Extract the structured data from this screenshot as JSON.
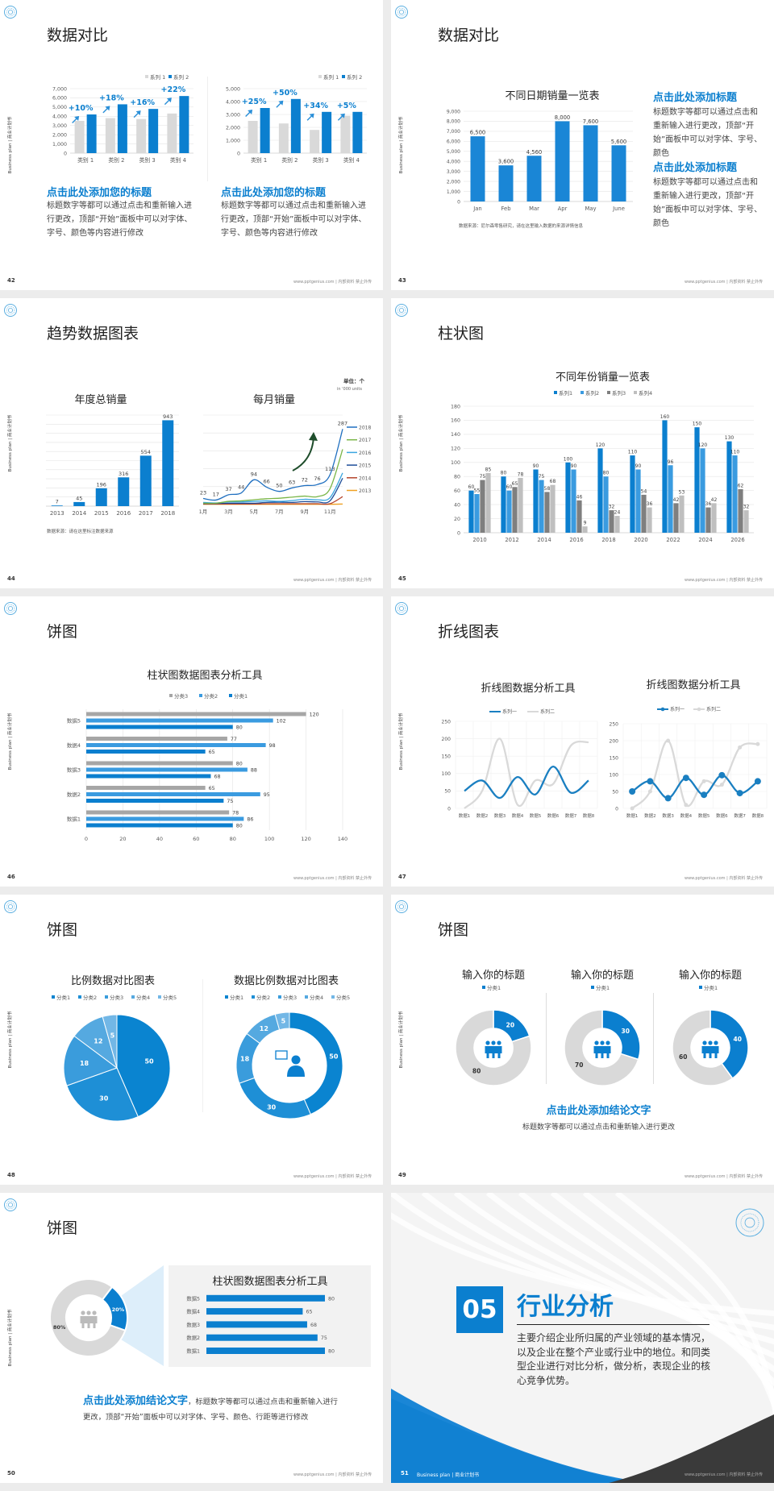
{
  "common": {
    "side_label": "Business plan | 商业计划书",
    "footer": "www.pptgenius.com | 内部资料 禁止外传",
    "accent": "#0b7fcf"
  },
  "slides": {
    "s42": {
      "page": "42",
      "title": "数据对比",
      "left_heading": "点击此处添加您的标题",
      "left_body": "标题数字等都可以通过点击和重新输入进行更改，顶部“开始”面板中可以对字体、字号、颜色等内容进行修改",
      "right_heading": "点击此处添加您的标题",
      "right_body": "标题数字等都可以通过点击和重新输入进行更改，顶部“开始”面板中可以对字体、字号、颜色等内容进行修改"
    },
    "s43": {
      "page": "43",
      "title": "数据对比",
      "source": "数据来源：尼尔森零售研究，请在这里输入数据的来源详情信息",
      "heading1": "点击此处添加标题",
      "body1": "标题数字等都可以通过点击和重新输入进行更改，顶部“开始”面板中可以对字体、字号、颜色",
      "heading2": "点击此处添加标题",
      "body2": "标题数字等都可以通过点击和重新输入进行更改，顶部“开始”面板中可以对字体、字号、颜色"
    },
    "s44": {
      "page": "44",
      "title": "趋势数据图表",
      "source": "数据来源：请在这里标注数据来源",
      "unit": "单位：个",
      "unit_sub": "in '000 units"
    },
    "s45": {
      "page": "45",
      "title": "柱状图"
    },
    "s46": {
      "page": "46",
      "title": "饼图"
    },
    "s47": {
      "page": "47",
      "title": "折线图表"
    },
    "s48": {
      "page": "48",
      "title": "饼图"
    },
    "s49": {
      "page": "49",
      "title": "饼图",
      "conclusion_heading": "点击此处添加结论文字",
      "conclusion_body": "标题数字等都可以通过点击和重新输入进行更改"
    },
    "s50": {
      "page": "50",
      "title": "饼图",
      "conclusion_heading": "点击此处添加结论文字",
      "conclusion_body": "，标题数字等都可以通过点击和重新输入进行更改，顶部“开始”面板中可以对字体、字号、颜色、行距等进行修改"
    },
    "s51": {
      "page": "51",
      "number": "05",
      "title": "行业分析",
      "body": "主要介绍企业所归属的产业领域的基本情况，以及企业在整个产业或行业中的地位。和同类型企业进行对比分析，做分析，表现企业的核心竞争优势。",
      "footer_left": "Business plan | 商业计划书"
    }
  },
  "chart_data": [
    {
      "type": "bar",
      "categories": [
        "类别 1",
        "类别 2",
        "类别 3",
        "类别 4"
      ],
      "ylim": [
        0,
        7000
      ],
      "ytick_labels": [
        "0",
        "1,000",
        "2,000",
        "3,000",
        "4,000",
        "5,000",
        "6,000",
        "7,000"
      ],
      "legend": "top-right",
      "series": [
        {
          "name": "系列 1",
          "color": "#d9d9d9",
          "values": [
            3500,
            3800,
            3700,
            4300
          ]
        },
        {
          "name": "系列 2",
          "color": "#0b7fcf",
          "values": [
            4200,
            5300,
            4800,
            6200
          ]
        }
      ],
      "annotations": [
        "+10%",
        "+18%",
        "+16%",
        "+22%"
      ]
    },
    {
      "type": "bar",
      "categories": [
        "类别 1",
        "类别 2",
        "类别 3",
        "类别 4"
      ],
      "ylim": [
        0,
        5000
      ],
      "ytick_labels": [
        "0",
        "1,000",
        "2,000",
        "3,000",
        "4,000",
        "5,000"
      ],
      "legend": "top-right",
      "series": [
        {
          "name": "系列 1",
          "color": "#d9d9d9",
          "values": [
            2500,
            2300,
            1800,
            2900
          ]
        },
        {
          "name": "系列 2",
          "color": "#0b7fcf",
          "values": [
            3500,
            4200,
            3200,
            3200
          ]
        }
      ],
      "annotations": [
        "+25%",
        "+50%",
        "+34%",
        "+5%"
      ]
    },
    {
      "type": "bar",
      "title": "不同日期销量一览表",
      "categories": [
        "Jan",
        "Feb",
        "Mar",
        "Apr",
        "May",
        "June"
      ],
      "ylim": [
        0,
        9000
      ],
      "ytick_labels": [
        "0",
        "1,000",
        "2,000",
        "3,000",
        "4,000",
        "5,000",
        "6,000",
        "7,000",
        "8,000",
        "9,000"
      ],
      "series": [
        {
          "color": "#1a86d6",
          "values": [
            6500,
            3600,
            4560,
            8000,
            7600,
            5600
          ]
        }
      ],
      "data_labels": [
        [
          "6,500",
          "3,600",
          "4,560",
          "8,000",
          "7,600",
          "5,600"
        ]
      ]
    },
    {
      "type": "bar",
      "title": "年度总销量",
      "categories": [
        "2013",
        "2014",
        "2015",
        "2016",
        "2017",
        "2018"
      ],
      "ylim": [
        0,
        1000
      ],
      "grid": true,
      "series": [
        {
          "color": "#0b7fcf",
          "values": [
            7,
            45,
            196,
            316,
            554,
            943
          ]
        }
      ]
    },
    {
      "type": "line",
      "title": "每月销量",
      "x": [
        1,
        2,
        3,
        4,
        5,
        6,
        7,
        8,
        9,
        10,
        11,
        12
      ],
      "xtick_labels": [
        "1月",
        "3月",
        "5月",
        "7月",
        "9月",
        "11月"
      ],
      "ylim": [
        0,
        340
      ],
      "legend": "right",
      "series": [
        {
          "name": "2018",
          "color": "#1f6fc0",
          "values": [
            23,
            17,
            37,
            44,
            94,
            66,
            50,
            63,
            72,
            76,
            113,
            287
          ],
          "labels": true
        },
        {
          "name": "2017",
          "color": "#7ab648",
          "values": [
            5,
            5,
            12,
            14,
            18,
            22,
            24,
            28,
            32,
            30,
            60,
            210
          ]
        },
        {
          "name": "2016",
          "color": "#3aa6e0",
          "values": [
            8,
            6,
            10,
            10,
            12,
            14,
            12,
            15,
            20,
            18,
            26,
            120
          ]
        },
        {
          "name": "2015",
          "color": "#1f4e99",
          "values": [
            4,
            4,
            5,
            5,
            5,
            8,
            9,
            8,
            11,
            10,
            14,
            100
          ]
        },
        {
          "name": "2014",
          "color": "#b5442c",
          "values": [
            2,
            2,
            2,
            2,
            2,
            3,
            3,
            3,
            3,
            3,
            3,
            30
          ]
        },
        {
          "name": "2013",
          "color": "#f0a020",
          "values": [
            1,
            1,
            1,
            1,
            1,
            1,
            1,
            1,
            1,
            1,
            1,
            2
          ]
        }
      ]
    },
    {
      "type": "bar",
      "title": "不同年份销量一览表",
      "categories": [
        "2010",
        "2012",
        "2014",
        "2016",
        "2018",
        "2020",
        "2022",
        "2024",
        "2026"
      ],
      "ylim": [
        0,
        180
      ],
      "ytick_labels": [
        "0",
        "20",
        "40",
        "60",
        "80",
        "100",
        "120",
        "140",
        "160",
        "180"
      ],
      "legend": "top",
      "series": [
        {
          "name": "系列1",
          "color": "#0b7fcf",
          "values": [
            60,
            80,
            90,
            100,
            120,
            110,
            160,
            150,
            130
          ]
        },
        {
          "name": "系列2",
          "color": "#3a9be0",
          "values": [
            55,
            60,
            75,
            90,
            80,
            90,
            96,
            120,
            110
          ]
        },
        {
          "name": "系列3",
          "color": "#7f7f7f",
          "values": [
            75,
            65,
            58,
            46,
            32,
            54,
            42,
            36,
            62
          ]
        },
        {
          "name": "系列4",
          "color": "#bfbfbf",
          "values": [
            85,
            78,
            68,
            9,
            24,
            36,
            53,
            42,
            32
          ]
        }
      ]
    },
    {
      "type": "bar",
      "orientation": "horizontal",
      "title": "柱状图数据图表分析工具",
      "categories": [
        "数据1",
        "数据2",
        "数据3",
        "数据4",
        "数据5"
      ],
      "xlim": [
        0,
        140
      ],
      "xtick_labels": [
        "0",
        "20",
        "40",
        "60",
        "80",
        "100",
        "120",
        "140"
      ],
      "legend": "top",
      "series": [
        {
          "name": "分类3",
          "color": "#a6a6a6",
          "values": [
            78,
            65,
            80,
            77,
            120
          ]
        },
        {
          "name": "分类2",
          "color": "#3a9be0",
          "values": [
            86,
            95,
            88,
            98,
            102
          ]
        },
        {
          "name": "分类1",
          "color": "#0b7fcf",
          "values": [
            80,
            75,
            68,
            65,
            80
          ]
        }
      ]
    },
    {
      "type": "line",
      "title": "折线图数据分析工具",
      "categories": [
        "数据1",
        "数据2",
        "数据3",
        "数据4",
        "数据5",
        "数据6",
        "数据7",
        "数据8"
      ],
      "ylim": [
        0,
        250
      ],
      "ytick_labels": [
        "0",
        "50",
        "100",
        "150",
        "200",
        "250"
      ],
      "legend": "top",
      "series": [
        {
          "name": "系列一",
          "color": "#1a7fc1",
          "values": [
            50,
            80,
            30,
            90,
            40,
            120,
            45,
            80
          ]
        },
        {
          "name": "系列二",
          "color": "#d9d9d9",
          "values": [
            0,
            50,
            200,
            10,
            80,
            70,
            180,
            190
          ]
        }
      ]
    },
    {
      "type": "line",
      "title": "折线图数据分析工具",
      "categories": [
        "数据1",
        "数据2",
        "数据3",
        "数据4",
        "数据5",
        "数据6",
        "数据7",
        "数据8"
      ],
      "ylim": [
        0,
        250
      ],
      "ytick_labels": [
        "0",
        "50",
        "100",
        "150",
        "200",
        "250"
      ],
      "legend": "top",
      "series": [
        {
          "name": "系列一",
          "color": "#1a7fc1",
          "values": [
            50,
            80,
            30,
            90,
            40,
            98,
            45,
            80
          ],
          "markers": true
        },
        {
          "name": "系列二",
          "color": "#d9d9d9",
          "values": [
            0,
            50,
            200,
            10,
            80,
            70,
            180,
            190
          ],
          "markers": true
        }
      ]
    },
    {
      "type": "pie",
      "title": "比例数据对比图表",
      "labels": [
        "分类1",
        "分类2",
        "分类3",
        "分类4",
        "分类5"
      ],
      "values": [
        50,
        30,
        18,
        12,
        5
      ],
      "colors": [
        "#0a84d0",
        "#1e8fd6",
        "#3a9cdc",
        "#55a9e0",
        "#72b7e6"
      ],
      "legend": "top"
    },
    {
      "type": "pie",
      "title": "数据比例数据对比图表",
      "labels": [
        "分类1",
        "分类2",
        "分类3",
        "分类4",
        "分类5"
      ],
      "values": [
        50,
        30,
        18,
        12,
        5
      ],
      "colors": [
        "#0a84d0",
        "#1e8fd6",
        "#3a9cdc",
        "#55a9e0",
        "#72b7e6"
      ],
      "legend": "top",
      "donut": true
    },
    {
      "type": "pie",
      "title": "输入你的标题",
      "labels": [
        "分类1",
        ""
      ],
      "values": [
        20,
        80
      ],
      "colors": [
        "#0b7fcf",
        "#d9d9d9"
      ],
      "donut": true
    },
    {
      "type": "pie",
      "title": "输入你的标题",
      "labels": [
        "分类1",
        ""
      ],
      "values": [
        30,
        70
      ],
      "colors": [
        "#0b7fcf",
        "#d9d9d9"
      ],
      "donut": true
    },
    {
      "type": "pie",
      "title": "输入你的标题",
      "labels": [
        "分类1",
        ""
      ],
      "values": [
        40,
        60
      ],
      "colors": [
        "#0b7fcf",
        "#d9d9d9"
      ],
      "donut": true
    },
    {
      "type": "pie",
      "values": [
        20,
        80
      ],
      "data_labels": [
        "20%",
        "80%"
      ],
      "colors": [
        "#0b7fcf",
        "#d9d9d9"
      ],
      "donut": true
    },
    {
      "type": "bar",
      "orientation": "horizontal",
      "title": "柱状图数据图表分析工具",
      "categories": [
        "数据1",
        "数据2",
        "数据3",
        "数据4",
        "数据5"
      ],
      "xlim": [
        0,
        80
      ],
      "series": [
        {
          "color": "#0b7fcf",
          "values": [
            80,
            75,
            68,
            65,
            80
          ]
        }
      ]
    }
  ]
}
